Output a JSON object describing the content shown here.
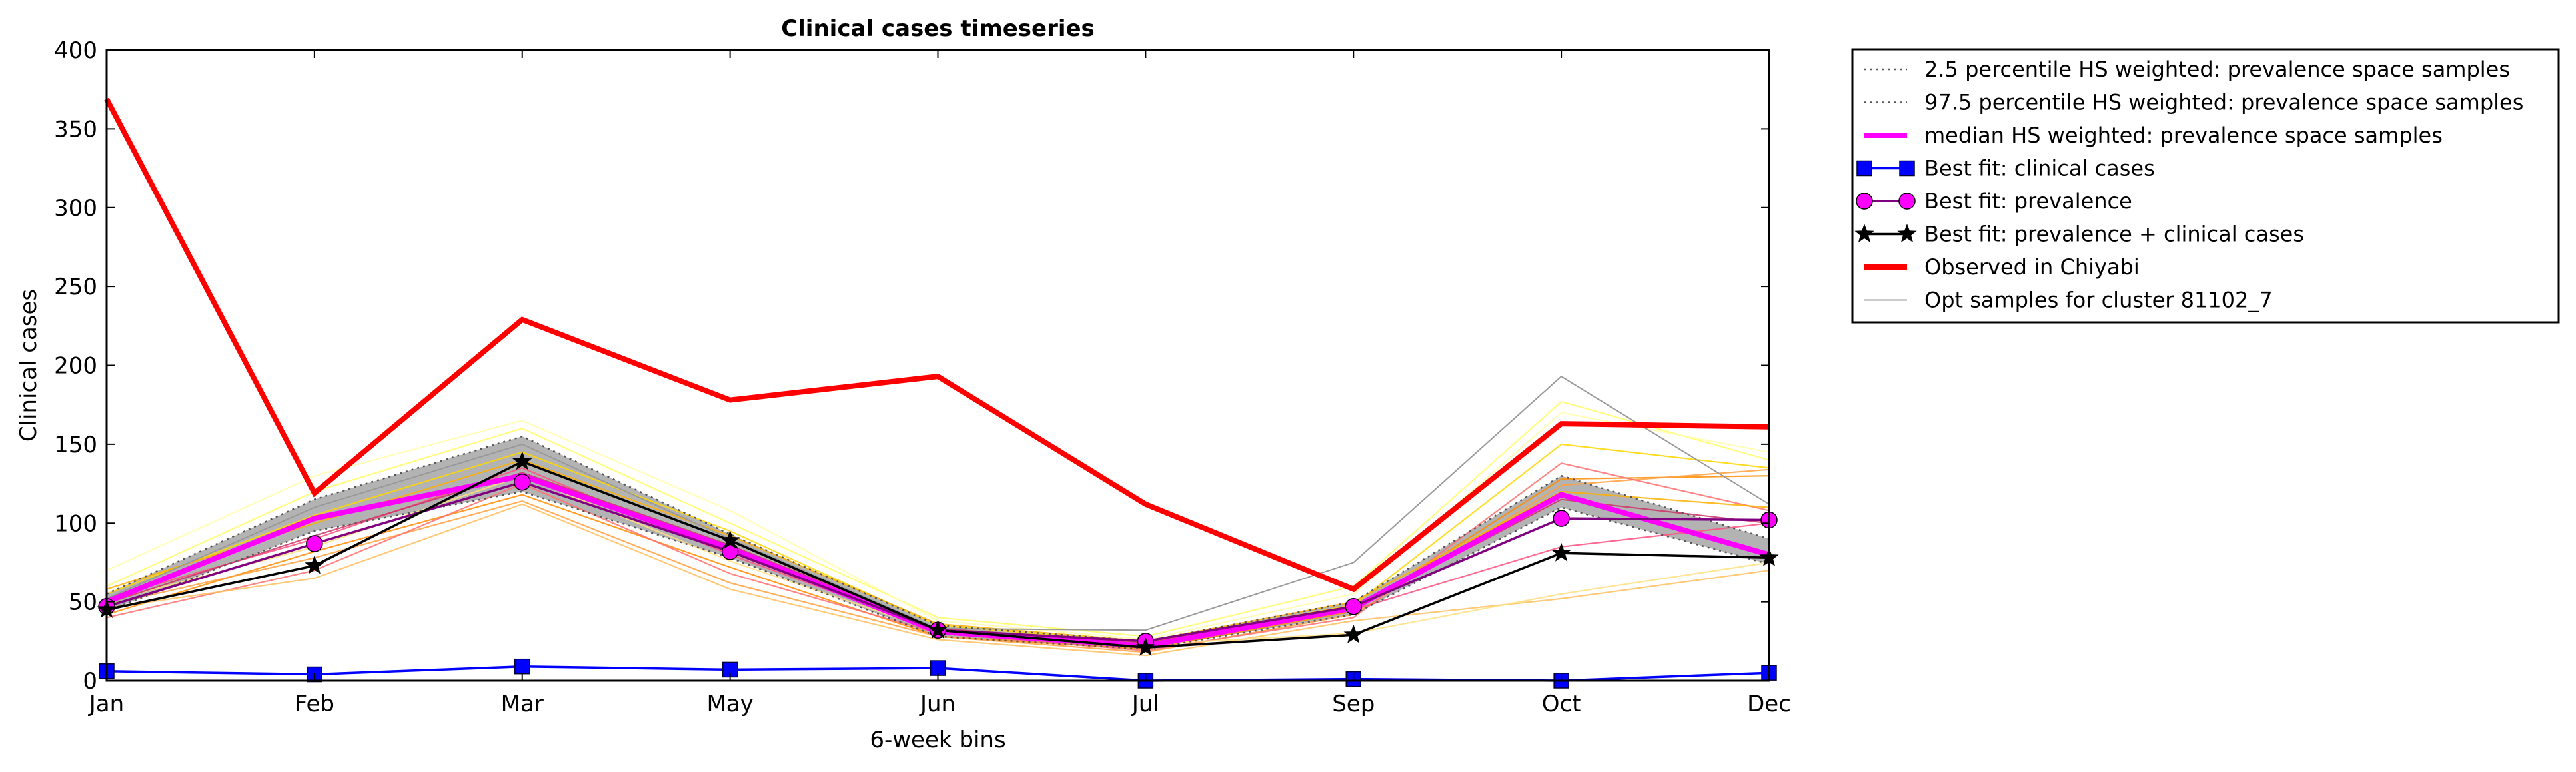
{
  "chart_data": {
    "type": "line",
    "title": "Clinical cases timeseries",
    "xlabel": "6-week bins",
    "ylabel": "Clinical cases",
    "categories": [
      "Jan",
      "Feb",
      "Mar",
      "May",
      "Jun",
      "Jul",
      "Sep",
      "Oct",
      "Dec"
    ],
    "yticks": [
      "0",
      "50",
      "100",
      "150",
      "200",
      "250",
      "300",
      "350",
      "400"
    ],
    "ylim": [
      0,
      400
    ],
    "grid": false,
    "legend_position": "outside right, top",
    "band": {
      "lower": [
        44,
        95,
        120,
        78,
        28,
        20,
        42,
        110,
        74
      ],
      "upper": [
        55,
        115,
        155,
        93,
        35,
        25,
        50,
        130,
        90
      ],
      "fill": "#999999"
    },
    "series": [
      {
        "name": "2.5 percentile HS weighted: prevalence space samples",
        "values": [
          44,
          95,
          120,
          78,
          28,
          20,
          42,
          110,
          74
        ],
        "color": "#555555",
        "style": "dotted"
      },
      {
        "name": "97.5 percentile HS weighted: prevalence space samples",
        "values": [
          55,
          115,
          155,
          93,
          35,
          25,
          50,
          130,
          90
        ],
        "color": "#555555",
        "style": "dotted"
      },
      {
        "name": "median HS weighted: prevalence space samples",
        "values": [
          50,
          103,
          130,
          84,
          31,
          22,
          46,
          118,
          80
        ],
        "color": "#ff00ff",
        "style": "solid-thick"
      },
      {
        "name": "Best fit: clinical cases",
        "values": [
          6,
          4,
          9,
          7,
          8,
          0,
          1,
          0,
          5
        ],
        "color": "#0000ff",
        "marker": "square"
      },
      {
        "name": "Best fit: prevalence",
        "values": [
          47,
          87,
          126,
          82,
          32,
          25,
          47,
          103,
          102
        ],
        "color": "#800080",
        "marker": "circle"
      },
      {
        "name": "Best fit: prevalence + clinical cases",
        "values": [
          45,
          73,
          139,
          89,
          32,
          21,
          29,
          81,
          78
        ],
        "color": "#000000",
        "marker": "star"
      },
      {
        "name": "Observed in Chiyabi",
        "values": [
          369,
          119,
          229,
          178,
          193,
          112,
          58,
          163,
          161
        ],
        "color": "#ff0000",
        "style": "solid-thick"
      },
      {
        "name": "Opt samples for cluster 81102_7",
        "values": [
          52,
          110,
          150,
          90,
          33,
          32,
          75,
          193,
          112
        ],
        "color": "#999999",
        "style": "thin"
      }
    ],
    "sample_lines": [
      {
        "values": [
          60,
          120,
          160,
          100,
          40,
          28,
          60,
          177,
          140
        ],
        "color": "#ffff66"
      },
      {
        "values": [
          70,
          130,
          165,
          108,
          38,
          26,
          55,
          170,
          145
        ],
        "color": "#ffffaa"
      },
      {
        "values": [
          55,
          105,
          145,
          95,
          35,
          24,
          48,
          150,
          135
        ],
        "color": "#ffd700"
      },
      {
        "values": [
          42,
          82,
          118,
          72,
          28,
          20,
          44,
          128,
          130
        ],
        "color": "#ff8c00"
      },
      {
        "values": [
          48,
          78,
          114,
          62,
          28,
          18,
          42,
          124,
          134
        ],
        "color": "#ffa040"
      },
      {
        "values": [
          40,
          70,
          125,
          68,
          30,
          19,
          40,
          138,
          108
        ],
        "color": "#ff7070"
      },
      {
        "values": [
          52,
          90,
          135,
          80,
          32,
          22,
          45,
          85,
          100
        ],
        "color": "#ff5080"
      },
      {
        "values": [
          46,
          65,
          112,
          58,
          26,
          16,
          38,
          52,
          70
        ],
        "color": "#ffc060"
      },
      {
        "values": [
          50,
          85,
          130,
          76,
          31,
          23,
          30,
          55,
          75
        ],
        "color": "#ffe080"
      },
      {
        "values": [
          58,
          100,
          140,
          92,
          36,
          25,
          50,
          120,
          110
        ],
        "color": "#ffb000"
      },
      {
        "values": [
          49,
          92,
          132,
          86,
          33,
          24,
          46,
          115,
          100
        ],
        "color": "#cc3366"
      }
    ]
  }
}
